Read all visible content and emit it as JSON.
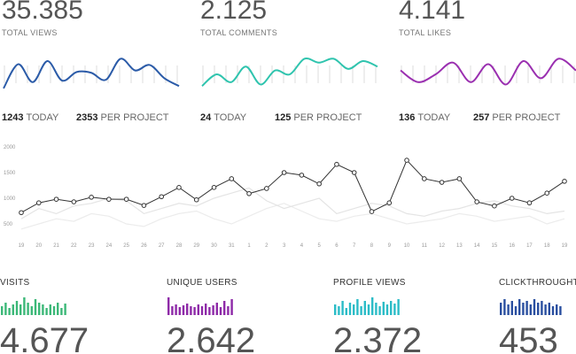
{
  "stats": [
    {
      "value": "35.385",
      "label": "TOTAL VIEWS",
      "color": "#2b5ba8",
      "trend": [
        7,
        38,
        15,
        42,
        17,
        28,
        27,
        18,
        45,
        30,
        37,
        20,
        10
      ],
      "today": 1243,
      "today_label": "TODAY",
      "per_project": 2353,
      "per_project_label": "PER PROJECT"
    },
    {
      "value": "2.125",
      "label": "TOTAL COMMENTS",
      "color": "#2fc4ae",
      "trend": [
        10,
        25,
        15,
        35,
        12,
        30,
        25,
        45,
        40,
        45,
        32,
        42,
        35
      ],
      "today": 24,
      "today_label": "TODAY",
      "per_project": 125,
      "per_project_label": "PER PROJECT"
    },
    {
      "value": "4.141",
      "label": "TOTAL LIKES",
      "color": "#9a2fb0",
      "trend": [
        30,
        15,
        25,
        40,
        15,
        38,
        12,
        42,
        20,
        45,
        30
      ],
      "today": 136,
      "today_label": "TODAY",
      "per_project": 257,
      "per_project_label": "PER PROJECT"
    }
  ],
  "chart_data": {
    "type": "line",
    "categories": [
      "19",
      "20",
      "21",
      "22",
      "23",
      "24",
      "25",
      "26",
      "27",
      "28",
      "29",
      "30",
      "31",
      "1",
      "2",
      "3",
      "4",
      "5",
      "6",
      "7",
      "8",
      "9",
      "10",
      "11",
      "12",
      "13",
      "14",
      "15",
      "16",
      "17",
      "18",
      "19"
    ],
    "series": [
      {
        "color": "#333333",
        "values": [
          720,
          910,
          980,
          930,
          1020,
          980,
          980,
          860,
          1030,
          1210,
          970,
          1210,
          1380,
          1090,
          1190,
          1500,
          1450,
          1280,
          1660,
          1500,
          740,
          910,
          1740,
          1380,
          1310,
          1380,
          930,
          850,
          1000,
          910,
          1100,
          1330
        ]
      },
      {
        "color": "#e4e4e4",
        "values": [
          600,
          800,
          700,
          850,
          900,
          1000,
          950,
          700,
          800,
          900,
          850,
          1000,
          1100,
          1200,
          950,
          800,
          900,
          1000,
          700,
          800,
          900,
          850,
          700,
          650,
          750,
          800,
          900,
          950,
          850,
          800,
          700,
          750
        ]
      },
      {
        "color": "#ececec",
        "values": [
          400,
          500,
          600,
          550,
          700,
          650,
          500,
          450,
          600,
          700,
          750,
          600,
          500,
          650,
          800,
          900,
          750,
          600,
          550,
          650,
          700,
          600,
          500,
          550,
          600,
          700,
          650,
          550,
          600,
          650,
          500,
          600
        ]
      }
    ],
    "ylim": [
      0,
      2000
    ],
    "yticks": [
      500,
      1000,
      1500,
      2000
    ],
    "grid": false
  },
  "metrics": [
    {
      "label": "VISITS",
      "color": "#3cb878",
      "bars": [
        10,
        14,
        8,
        12,
        16,
        12,
        20,
        14,
        10,
        18,
        14,
        12,
        8,
        12,
        10,
        14,
        8,
        13
      ],
      "value": "4.677"
    },
    {
      "label": "UNIQUE USERS",
      "color": "#8e2aa8",
      "bars": [
        20,
        10,
        12,
        9,
        11,
        13,
        10,
        9,
        12,
        10,
        13,
        9,
        11,
        14,
        9,
        16,
        10,
        18
      ],
      "value": "2.642"
    },
    {
      "label": "PROFILE VIEWS",
      "color": "#2bbcc7",
      "bars": [
        12,
        10,
        16,
        8,
        14,
        12,
        18,
        10,
        16,
        12,
        20,
        14,
        10,
        15,
        12,
        16,
        13,
        18
      ],
      "value": "2.372"
    },
    {
      "label": "CLICKTHROUGHTS",
      "color": "#2a4fa0",
      "bars": [
        14,
        18,
        12,
        16,
        10,
        18,
        14,
        16,
        12,
        18,
        14,
        16,
        12,
        14,
        10,
        12,
        10
      ],
      "value": "453"
    }
  ]
}
